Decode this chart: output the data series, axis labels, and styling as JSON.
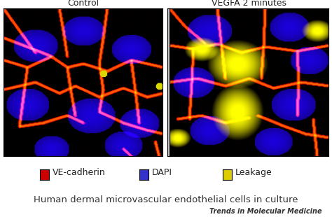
{
  "panel_left_label": "Control",
  "panel_right_label": "VEGFA 2 minutes",
  "legend_items": [
    {
      "label": "VE-cadherin",
      "color": "#cc0000"
    },
    {
      "label": "DAPI",
      "color": "#3333cc"
    },
    {
      "label": "Leakage",
      "color": "#ddcc00"
    }
  ],
  "caption": "Human dermal microvascular endothelial cells in culture",
  "watermark": "Trends in Molecular Medicine",
  "bg_color": "#ffffff",
  "panel_bg": "#000000",
  "label_fontsize": 9,
  "legend_fontsize": 9,
  "caption_fontsize": 9.5,
  "watermark_fontsize": 7,
  "fig_width": 4.74,
  "fig_height": 3.1,
  "fig_dpi": 100
}
